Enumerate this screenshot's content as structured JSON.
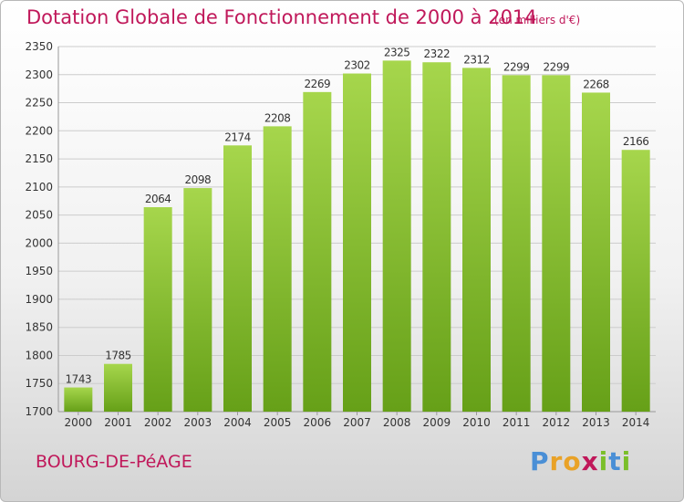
{
  "header": {
    "title": "Dotation Globale de Fonctionnement de 2000 à 2014",
    "unit": "(en milliers d'€)"
  },
  "footer": {
    "town": "BOURG-DE-PéAGE",
    "brand": "Proxiti",
    "brand_colors": [
      "#4a8fd6",
      "#e9a227",
      "#e9a227",
      "#c0185a",
      "#7bbf2a",
      "#4a8fd6",
      "#7bbf2a"
    ]
  },
  "colors": {
    "bar_top": "#a6d64c",
    "bar_bottom": "#66a018",
    "label": "#333333",
    "grid": "#cccccc",
    "title": "#c0185a"
  },
  "chart_data": {
    "type": "bar",
    "categories": [
      "2000",
      "2001",
      "2002",
      "2003",
      "2004",
      "2005",
      "2006",
      "2007",
      "2008",
      "2009",
      "2010",
      "2011",
      "2012",
      "2013",
      "2014"
    ],
    "values": [
      1743,
      1785,
      2064,
      2098,
      2174,
      2208,
      2269,
      2302,
      2325,
      2322,
      2312,
      2299,
      2299,
      2268,
      2166
    ],
    "ylim": [
      1700,
      2350
    ],
    "yticks": [
      1700,
      1750,
      1800,
      1850,
      1900,
      1950,
      2000,
      2050,
      2100,
      2150,
      2200,
      2250,
      2300,
      2350
    ],
    "grid": true,
    "data_labels": true
  }
}
